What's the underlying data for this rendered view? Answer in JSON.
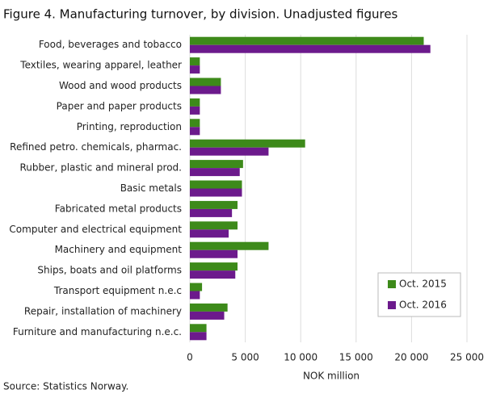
{
  "chart_data": {
    "type": "hbar",
    "title": "Figure 4. Manufacturing turnover, by division. Unadjusted figures",
    "categories": [
      "Food, beverages and tobacco",
      "Textiles, wearing apparel, leather",
      "Wood and wood products",
      "Paper and paper products",
      "Printing, reproduction",
      "Refined petro. chemicals, pharmac.",
      "Rubber, plastic and mineral prod.",
      "Basic metals",
      "Fabricated metal products",
      "Computer and electrical equipment",
      "Machinery and equipment",
      "Ships, boats and oil platforms",
      "Transport equipment n.e.c",
      "Repair, installation of machinery",
      "Furniture and manufacturing n.e.c."
    ],
    "series": [
      {
        "name": "Oct. 2015",
        "color": "#3d8a1a",
        "values": [
          21100,
          900,
          2800,
          900,
          900,
          10400,
          4800,
          4700,
          4300,
          4300,
          7100,
          4300,
          1100,
          3400,
          1500
        ]
      },
      {
        "name": "Oct. 2016",
        "color": "#6c1a8c",
        "values": [
          21700,
          900,
          2800,
          900,
          900,
          7100,
          4500,
          4700,
          3800,
          3500,
          4300,
          4100,
          900,
          3100,
          1500
        ]
      }
    ],
    "xlim": [
      0,
      25000
    ],
    "xticks": [
      0,
      {
        "value": 5000,
        "label": "5 000"
      },
      {
        "value": 10000,
        "label": "10 000"
      },
      {
        "value": 15000,
        "label": "15 000"
      },
      {
        "value": 20000,
        "label": "20 000"
      },
      {
        "value": 25000,
        "label": "25 000"
      }
    ],
    "xlabel": "NOK million",
    "source": "Source: Statistics Norway.",
    "grid": true,
    "legend": "lower-right"
  }
}
